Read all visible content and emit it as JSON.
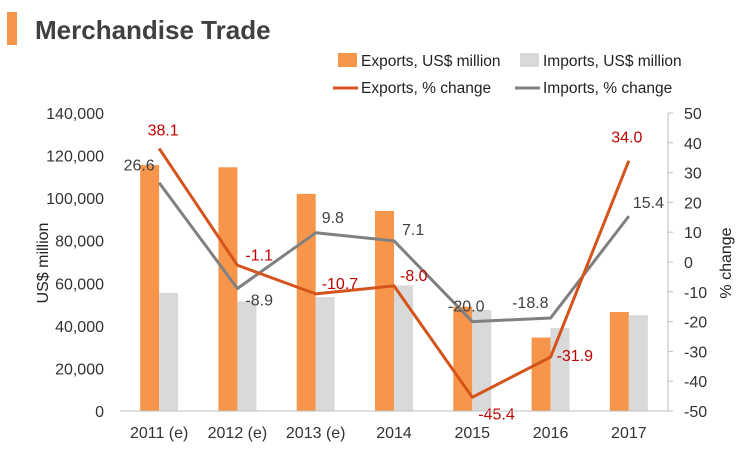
{
  "chart_data": {
    "type": "bar",
    "title": "Merchandise Trade",
    "categories": [
      "2011 (e)",
      "2012 (e)",
      "2013 (e)",
      "2014",
      "2015",
      "2016",
      "2017"
    ],
    "ylabel": "US$ million",
    "y2label": "% change",
    "ylim": [
      0,
      140000
    ],
    "y2lim": [
      -50,
      50
    ],
    "yticks": [
      "0",
      "20,000",
      "40,000",
      "60,000",
      "80,000",
      "100,000",
      "120,000",
      "140,000"
    ],
    "y2ticks": [
      "-50",
      "-40",
      "-30",
      "-20",
      "-10",
      "0",
      "10",
      "20",
      "30",
      "40",
      "50"
    ],
    "series": [
      {
        "name": "Exports, US$ million",
        "type": "bar",
        "color": "#F7964A",
        "values": [
          115500,
          114500,
          102000,
          94000,
          49000,
          34500,
          46500
        ]
      },
      {
        "name": "Imports, US$ million",
        "type": "bar",
        "color": "#D9D9D9",
        "values": [
          55500,
          51500,
          53500,
          59000,
          47500,
          39000,
          45000
        ]
      },
      {
        "name": "Exports, % change",
        "type": "line",
        "axis": "right",
        "color": "#D4541C",
        "values": [
          38.1,
          -1.1,
          -10.7,
          -8.0,
          -45.4,
          -31.9,
          34.0
        ],
        "labels": [
          "38.1",
          "-1.1",
          "-10.7",
          "-8.0",
          "-45.4",
          "-31.9",
          "34.0"
        ]
      },
      {
        "name": "Imports, % change",
        "type": "line",
        "axis": "right",
        "color": "#808080",
        "values": [
          26.6,
          -8.9,
          9.8,
          7.1,
          -20.0,
          -18.8,
          15.4
        ],
        "labels": [
          "26.6",
          "-8.9",
          "9.8",
          "7.1",
          "-20.0",
          "-18.8",
          "15.4"
        ]
      }
    ],
    "legend": [
      "Exports, US$ million",
      "Imports, US$ million",
      "Exports, % change",
      "Imports, % change"
    ],
    "legend_position": "top-right",
    "label_color_exports": "#C00000",
    "label_color_imports": "#404040",
    "accent_color": "#F7964A"
  }
}
